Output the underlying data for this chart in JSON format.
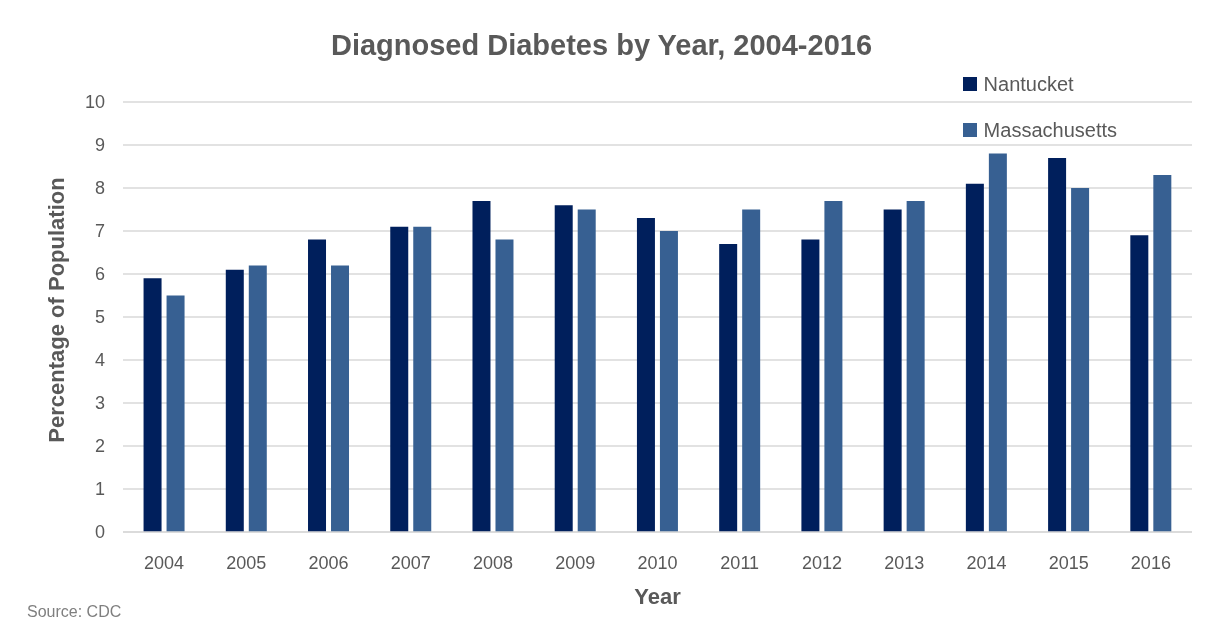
{
  "chart_data": {
    "type": "bar",
    "title": "Diagnosed Diabetes by Year, 2004-2016",
    "xlabel": "Year",
    "ylabel": "Percentage of Population",
    "annotations": [
      "Source: CDC"
    ],
    "categories": [
      "2004",
      "2005",
      "2006",
      "2007",
      "2008",
      "2009",
      "2010",
      "2011",
      "2012",
      "2013",
      "2014",
      "2015",
      "2016"
    ],
    "series": [
      {
        "name": "Nantucket",
        "color": "#001f5c",
        "values": [
          5.9,
          6.1,
          6.8,
          7.1,
          7.7,
          7.6,
          7.3,
          6.7,
          6.8,
          7.5,
          8.1,
          8.7,
          6.9
        ]
      },
      {
        "name": "Massachusetts",
        "color": "#376092",
        "values": [
          5.5,
          6.2,
          6.2,
          7.1,
          6.8,
          7.5,
          7.0,
          7.5,
          7.7,
          7.7,
          8.8,
          8.0,
          8.3
        ]
      }
    ],
    "ylim": [
      0,
      10
    ],
    "yticks": [
      0,
      1,
      2,
      3,
      4,
      5,
      6,
      7,
      8,
      9,
      10
    ],
    "grid": "y",
    "legend": "top right"
  }
}
